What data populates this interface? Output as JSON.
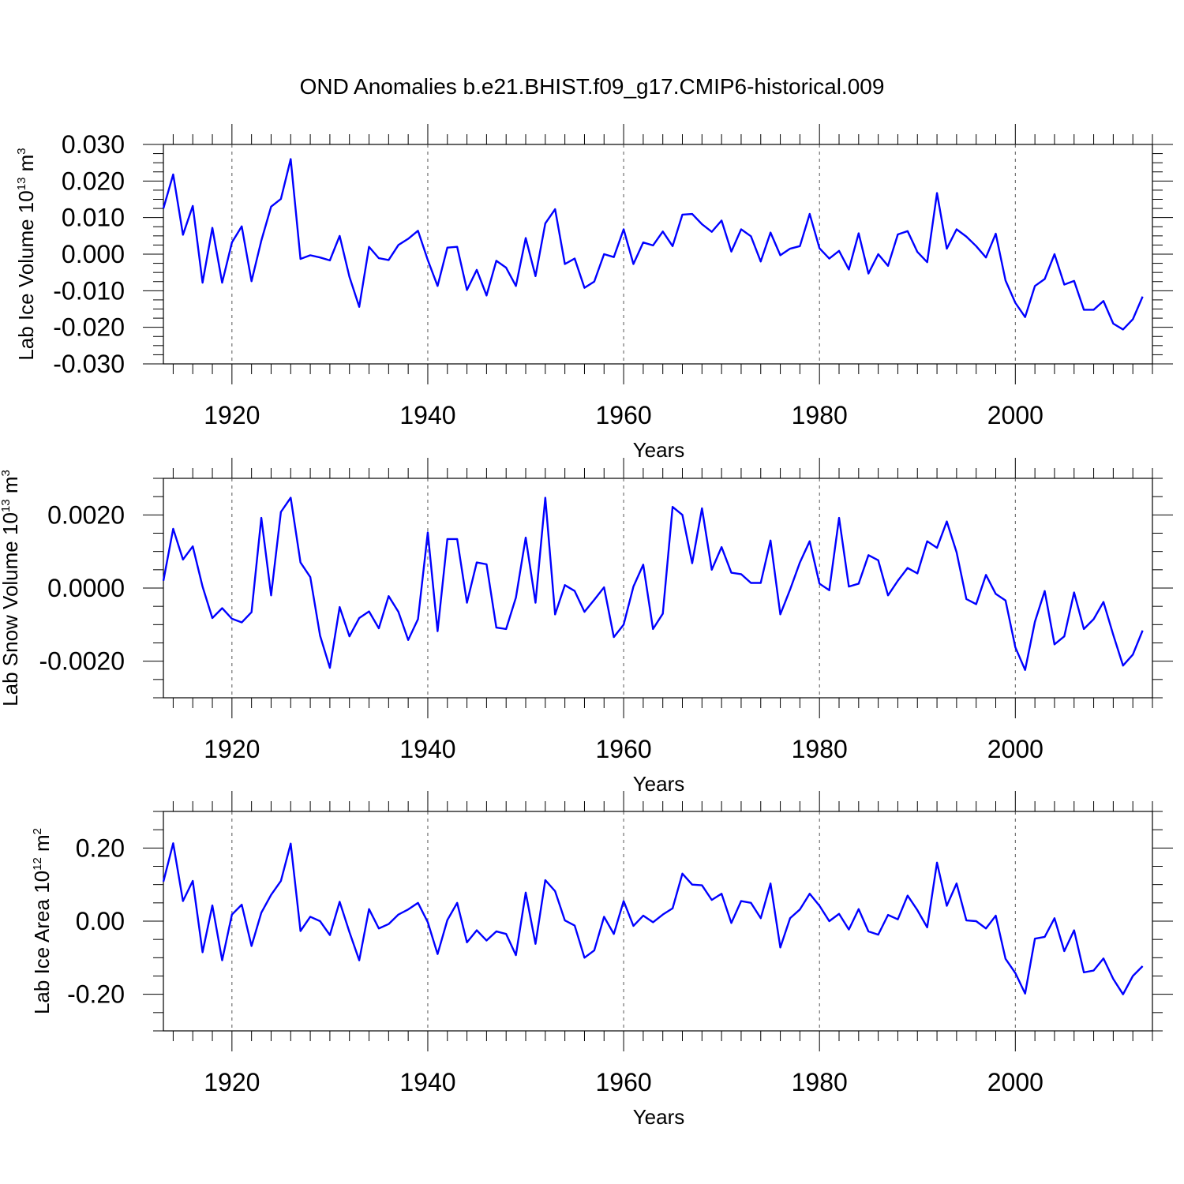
{
  "title": "OND Anomalies b.e21.BHIST.f09_g17.CMIP6-historical.009",
  "line_color": "#0000ff",
  "chart_data": [
    {
      "type": "line",
      "ylabel": "Lab Ice Volume",
      "unit_base": "10",
      "unit_exp": "13",
      "unit_suffix": "m",
      "unit_suffix_exp": "3",
      "xlabel": "Years",
      "xlim": [
        1913,
        2014
      ],
      "ylim": [
        -0.03,
        0.03
      ],
      "y_ticks": [
        -0.03,
        -0.02,
        -0.01,
        0.0,
        0.01,
        0.02,
        0.03
      ],
      "y_tick_labels": [
        "-0.030",
        "-0.020",
        "-0.010",
        "0.000",
        "0.010",
        "0.020",
        "0.030"
      ],
      "x_ticks": [
        1920,
        1940,
        1960,
        1980,
        2000
      ],
      "x_tick_labels": [
        "1920",
        "1940",
        "1960",
        "1980",
        "2000"
      ],
      "x_start": 1913,
      "values": [
        0.0125,
        0.0218,
        0.0053,
        0.0132,
        -0.0078,
        0.0072,
        -0.0078,
        0.0032,
        0.0076,
        -0.0074,
        0.0037,
        0.013,
        0.0151,
        0.026,
        -0.0013,
        -0.0003,
        -0.0009,
        -0.0017,
        0.005,
        -0.0062,
        -0.0144,
        0.002,
        -0.0011,
        -0.0016,
        0.0025,
        0.0042,
        0.0064,
        -0.0016,
        -0.0087,
        0.0018,
        0.002,
        -0.0098,
        -0.0043,
        -0.0113,
        -0.0018,
        -0.0037,
        -0.0087,
        0.0044,
        -0.006,
        0.0084,
        0.0123,
        -0.0027,
        -0.0012,
        -0.0092,
        -0.0075,
        -0.0,
        -0.0008,
        0.0068,
        -0.0027,
        0.0032,
        0.0024,
        0.0062,
        0.0022,
        0.0108,
        0.011,
        0.0082,
        0.0061,
        0.0092,
        0.0007,
        0.0068,
        0.0049,
        -0.002,
        0.0059,
        -0.0003,
        0.0015,
        0.0022,
        0.011,
        0.0016,
        -0.0012,
        0.0009,
        -0.0042,
        0.0057,
        -0.0053,
        -0.0,
        -0.0032,
        0.0054,
        0.0063,
        0.0006,
        -0.0022,
        0.0167,
        0.0015,
        0.0068,
        0.0048,
        0.0022,
        -0.0009,
        0.0056,
        -0.0072,
        -0.0133,
        -0.0172,
        -0.0087,
        -0.0068,
        0.0,
        -0.0083,
        -0.0073,
        -0.0152,
        -0.0152,
        -0.0128,
        -0.019,
        -0.0206,
        -0.0178,
        -0.0116
      ]
    },
    {
      "type": "line",
      "ylabel": "Lab Snow Volume",
      "unit_base": "10",
      "unit_exp": "13",
      "unit_suffix": "m",
      "unit_suffix_exp": "3",
      "xlabel": "Years",
      "xlim": [
        1913,
        2014
      ],
      "ylim": [
        -0.003,
        0.003
      ],
      "y_ticks": [
        -0.002,
        0.0,
        0.002
      ],
      "y_tick_labels": [
        "-0.0020",
        "0.0000",
        "0.0020"
      ],
      "x_ticks": [
        1920,
        1940,
        1960,
        1980,
        2000
      ],
      "x_tick_labels": [
        "1920",
        "1940",
        "1960",
        "1980",
        "2000"
      ],
      "x_start": 1913,
      "values": [
        0.0002,
        0.00162,
        0.00078,
        0.00114,
        4e-05,
        -0.00082,
        -0.00055,
        -0.00084,
        -0.00094,
        -0.00066,
        0.00192,
        -0.0002,
        0.00208,
        0.00247,
        0.0007,
        0.0003,
        -0.0013,
        -0.00218,
        -0.00052,
        -0.00132,
        -0.00082,
        -0.00064,
        -0.0011,
        -0.00022,
        -0.00065,
        -0.00142,
        -0.00085,
        0.00152,
        -0.00118,
        0.00134,
        0.00134,
        -0.0004,
        0.0007,
        0.00065,
        -0.00108,
        -0.00112,
        -0.00026,
        0.00138,
        -0.0004,
        0.00247,
        -0.00072,
        8e-05,
        -8e-05,
        -0.00065,
        -0.00032,
        2e-05,
        -0.00134,
        -0.001,
        4e-05,
        0.00064,
        -0.00112,
        -0.0007,
        0.00222,
        0.002,
        0.00068,
        0.00218,
        0.0005,
        0.00112,
        0.00042,
        0.00038,
        0.00014,
        0.00014,
        0.0013,
        -0.00072,
        -4e-05,
        0.0007,
        0.00128,
        0.00012,
        -6e-05,
        0.00192,
        4e-05,
        0.00012,
        0.0009,
        0.00076,
        -0.0002,
        0.0002,
        0.00055,
        0.0004,
        0.00128,
        0.0011,
        0.00182,
        0.00098,
        -0.0003,
        -0.00044,
        0.00036,
        -0.00016,
        -0.00034,
        -0.00162,
        -0.00224,
        -0.00092,
        -8e-05,
        -0.00154,
        -0.00132,
        -0.00012,
        -0.00112,
        -0.00085,
        -0.00038,
        -0.00128,
        -0.00212,
        -0.00182,
        -0.00116
      ]
    },
    {
      "type": "line",
      "ylabel": "Lab Ice Area",
      "unit_base": "10",
      "unit_exp": "12",
      "unit_suffix": "m",
      "unit_suffix_exp": "2",
      "xlabel": "Years",
      "xlim": [
        1913,
        2014
      ],
      "ylim": [
        -0.3,
        0.3
      ],
      "y_ticks": [
        -0.2,
        0.0,
        0.2
      ],
      "y_tick_labels": [
        "-0.20",
        "0.00",
        "0.20"
      ],
      "x_ticks": [
        1920,
        1940,
        1960,
        1980,
        2000
      ],
      "x_tick_labels": [
        "1920",
        "1940",
        "1960",
        "1980",
        "2000"
      ],
      "x_start": 1913,
      "values": [
        0.108,
        0.213,
        0.055,
        0.11,
        -0.085,
        0.043,
        -0.107,
        0.018,
        0.045,
        -0.068,
        0.023,
        0.072,
        0.11,
        0.212,
        -0.027,
        0.012,
        0.0,
        -0.038,
        0.053,
        -0.03,
        -0.107,
        0.033,
        -0.02,
        -0.008,
        0.018,
        0.032,
        0.05,
        -0.003,
        -0.09,
        0.003,
        0.05,
        -0.058,
        -0.025,
        -0.053,
        -0.028,
        -0.035,
        -0.093,
        0.078,
        -0.062,
        0.112,
        0.082,
        0.002,
        -0.012,
        -0.1,
        -0.08,
        0.012,
        -0.035,
        0.055,
        -0.013,
        0.015,
        -0.003,
        0.018,
        0.035,
        0.13,
        0.1,
        0.098,
        0.058,
        0.075,
        -0.005,
        0.055,
        0.05,
        0.008,
        0.103,
        -0.072,
        0.008,
        0.032,
        0.075,
        0.042,
        0.0,
        0.02,
        -0.023,
        0.033,
        -0.028,
        -0.037,
        0.017,
        0.005,
        0.07,
        0.03,
        -0.017,
        0.16,
        0.042,
        0.103,
        0.002,
        0.0,
        -0.02,
        0.015,
        -0.103,
        -0.142,
        -0.198,
        -0.048,
        -0.043,
        0.008,
        -0.082,
        -0.025,
        -0.14,
        -0.135,
        -0.102,
        -0.158,
        -0.2,
        -0.15,
        -0.123
      ]
    }
  ]
}
